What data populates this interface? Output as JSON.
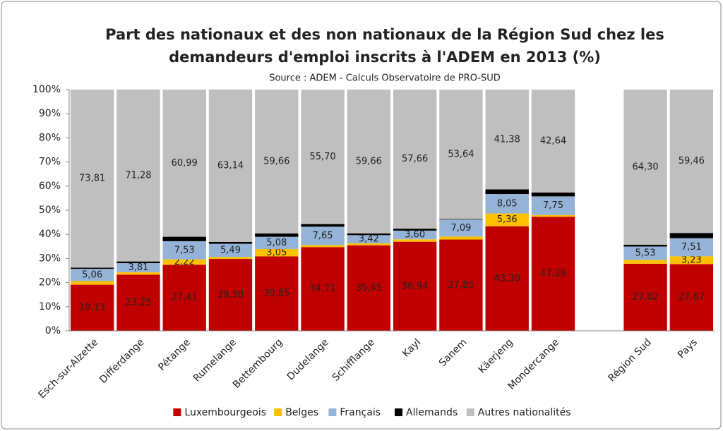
{
  "chart_data": {
    "type": "bar",
    "stacked": true,
    "title": [
      "Part des nationaux et des non nationaux de la Région Sud chez les",
      "demandeurs d'emploi inscrits à l'ADEM en 2013 (%)"
    ],
    "subtitle": "Source : ADEM - Calculs Observatoire de PRO-SUD",
    "categories": [
      "Esch-sur-Alzette",
      "Differdange",
      "Pétange",
      "Rumelange",
      "Bettembourg",
      "Dudelange",
      "Schifflange",
      "Kayl",
      "Sanem",
      "Käerjeng",
      "Mondercange",
      null,
      "Région Sud",
      "Pays"
    ],
    "series": [
      {
        "name": "Luxembourgeois",
        "color": "#c00000",
        "values": [
          19.13,
          23.25,
          27.41,
          29.8,
          30.85,
          34.71,
          35.45,
          36.94,
          37.85,
          43.3,
          47.29,
          null,
          27.82,
          27.67
        ],
        "value_labels": [
          "19,13",
          "23,25",
          "27,41",
          "29,80",
          "30,85",
          "34,71",
          "35,45",
          "36,94",
          "37,85",
          "43,30",
          "47,29",
          null,
          "27,82",
          "27,67"
        ]
      },
      {
        "name": "Belges",
        "color": "#ffc000",
        "values": [
          1.5,
          1.0,
          2.22,
          0.8,
          3.05,
          0.8,
          0.8,
          1.0,
          1.2,
          5.36,
          0.7,
          null,
          1.6,
          3.23
        ],
        "value_labels": [
          null,
          null,
          "2,22",
          null,
          "3,05",
          null,
          null,
          null,
          null,
          "5,36",
          null,
          null,
          null,
          "3,23"
        ]
      },
      {
        "name": "Français",
        "color": "#95b3d7",
        "values": [
          5.06,
          3.81,
          7.53,
          5.49,
          5.08,
          7.65,
          3.42,
          3.6,
          7.09,
          8.05,
          7.75,
          null,
          5.53,
          7.51
        ],
        "value_labels": [
          "5,06",
          "3,81",
          "7,53",
          "5,49",
          "5,08",
          "7,65",
          "3,42",
          "3,60",
          "7,09",
          "8,05",
          "7,75",
          null,
          "5,53",
          "7,51"
        ]
      },
      {
        "name": "Allemands",
        "color": "#000000",
        "values": [
          0.5,
          0.7,
          1.85,
          0.8,
          1.36,
          1.1,
          0.7,
          0.8,
          0.2,
          1.91,
          1.6,
          null,
          0.75,
          2.13
        ],
        "value_labels": [
          null,
          null,
          null,
          null,
          null,
          null,
          null,
          null,
          null,
          null,
          null,
          null,
          null,
          null
        ]
      },
      {
        "name": "Autres nationalités",
        "color": "#bfbfbf",
        "values": [
          73.81,
          71.28,
          60.99,
          63.14,
          59.66,
          55.7,
          59.66,
          57.66,
          53.64,
          41.38,
          42.64,
          null,
          64.3,
          59.46
        ],
        "value_labels": [
          "73,81",
          "71,28",
          "60,99",
          "63,14",
          "59,66",
          "55,70",
          "59,66",
          "57,66",
          "53,64",
          "41,38",
          "42,64",
          null,
          "64,30",
          "59,46"
        ]
      }
    ],
    "ylim": [
      0,
      100
    ],
    "yticks": [
      {
        "value": 0,
        "label": "0%"
      },
      {
        "value": 10,
        "label": "10%"
      },
      {
        "value": 20,
        "label": "20%"
      },
      {
        "value": 30,
        "label": "30%"
      },
      {
        "value": 40,
        "label": "40%"
      },
      {
        "value": 50,
        "label": "50%"
      },
      {
        "value": 60,
        "label": "60%"
      },
      {
        "value": 70,
        "label": "70%"
      },
      {
        "value": 80,
        "label": "80%"
      },
      {
        "value": 90,
        "label": "90%"
      },
      {
        "value": 100,
        "label": "100%"
      }
    ],
    "grid": false,
    "legend": "bottom"
  }
}
